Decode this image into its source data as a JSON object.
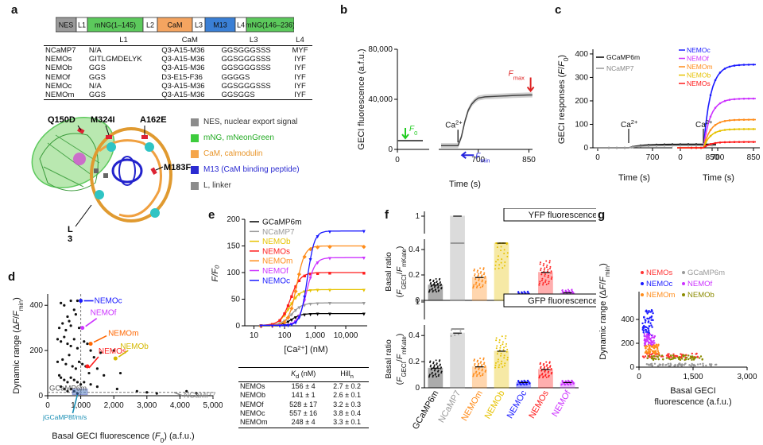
{
  "panel_labels": {
    "a": "a",
    "b": "b",
    "c": "c",
    "d": "d",
    "e": "e",
    "f": "f",
    "g": "g"
  },
  "construct": {
    "segments": [
      {
        "label": "NES",
        "color": "#9a9a9a",
        "text_color": "#111"
      },
      {
        "label": "L1",
        "color": "#ffffff",
        "text_color": "#111"
      },
      {
        "label": "mNG(1–145)",
        "color": "#5cc95c",
        "text_color": "#111"
      },
      {
        "label": "L2",
        "color": "#ffffff",
        "text_color": "#111"
      },
      {
        "label": "CaM",
        "color": "#f4a460",
        "text_color": "#111"
      },
      {
        "label": "L3",
        "color": "#ffffff",
        "text_color": "#111"
      },
      {
        "label": "M13",
        "color": "#3a7fd5",
        "text_color": "#111"
      },
      {
        "label": "L4",
        "color": "#ffffff",
        "text_color": "#111"
      },
      {
        "label": "mNG(146–236)",
        "color": "#5cc95c",
        "text_color": "#111"
      }
    ]
  },
  "table_a": {
    "headers": [
      "",
      "L1",
      "CaM",
      "L3",
      "L4"
    ],
    "rows": [
      [
        "NCaMP7",
        "N/A",
        "Q3-A15-M36",
        "GGSGGGSSS",
        "MYF"
      ],
      [
        "NEMOs",
        "GITLGMDELYK",
        "Q3-A15-M36",
        "GGSGGGSSS",
        "IYF"
      ],
      [
        "NEMOb",
        "GGS",
        "Q3-A15-M36",
        "GGSGGGSSS",
        "IYF"
      ],
      [
        "NEMOf",
        "GGS",
        "D3-E15-F36",
        "GGGGS",
        "IYF"
      ],
      [
        "NEMOc",
        "N/A",
        "Q3-A15-M36",
        "GGSGGGSSS",
        "IYF"
      ],
      [
        "NEMOm",
        "GGS",
        "Q3-A15-M36",
        "GGSGGS",
        "IYF"
      ]
    ]
  },
  "structure": {
    "mutations": [
      "Q150D",
      "M324I",
      "A162E",
      "M183F",
      "L\n3"
    ]
  },
  "legend_a": [
    {
      "color": "#8c8c8c",
      "text": "NES, nuclear export signal",
      "text_color": "#333"
    },
    {
      "color": "#3dcc3d",
      "text": "mNG, mNeonGreen",
      "text_color": "#22aa22"
    },
    {
      "color": "#f5a54a",
      "text": "CaM, calmodulin",
      "text_color": "#e8952a"
    },
    {
      "color": "#2b2bd1",
      "text": "M13 (CaM binding peptide)",
      "text_color": "#2b2bd1"
    },
    {
      "color": "#8c8c8c",
      "text": "L, linker",
      "text_color": "#333"
    }
  ],
  "chart_data": [
    {
      "panel": "b",
      "type": "line",
      "xlabel": "Time (s)",
      "ylabel": "GECI fluorescence (a.f.u.)",
      "xticks": [
        0,
        700,
        850
      ],
      "yticks": [
        "0",
        "40,000",
        "80,000"
      ],
      "ylim": [
        0,
        80000
      ],
      "segments": [
        {
          "x": [
            0,
            100
          ],
          "y": [
            7000,
            7000
          ]
        },
        {
          "x": [
            590,
            640,
            650,
            660,
            670,
            680,
            690,
            700,
            720,
            760,
            800,
            850,
            860
          ],
          "y": [
            3000,
            3000,
            10000,
            22000,
            31000,
            36000,
            39000,
            41000,
            42000,
            42500,
            43000,
            43500,
            43500
          ]
        }
      ],
      "annotations": {
        "f0": "F",
        "f0_sub": "0",
        "fmin": "F",
        "fmin_sub": "min",
        "fmax": "F",
        "fmax_sub": "max",
        "ca": "Ca",
        "ca_sup": "2+"
      }
    },
    {
      "panel": "c",
      "type": "line",
      "xlabel": "Time (s)",
      "ylabel": "GECI responses (F/F",
      "ylabel_sub": "0",
      "ylabel_end": ")",
      "yticks": [
        0,
        100,
        200,
        300,
        400
      ],
      "xticks": [
        0,
        700,
        850
      ],
      "left_series": [
        {
          "name": "GCaMP6m",
          "color": "#000000",
          "plateau": 15
        },
        {
          "name": "NCaMP7",
          "color": "#999999",
          "plateau": 10
        }
      ],
      "right_series": [
        {
          "name": "NEMOc",
          "color": "#1a1aff",
          "plateau": 355
        },
        {
          "name": "NEMOf",
          "color": "#cc33ff",
          "plateau": 210
        },
        {
          "name": "NEMOm",
          "color": "#ff8c1a",
          "plateau": 120
        },
        {
          "name": "NEMOb",
          "color": "#e6c200",
          "plateau": 80
        },
        {
          "name": "NEMOs",
          "color": "#ff1a1a",
          "plateau": 25
        }
      ],
      "annotation": {
        "ca": "Ca",
        "ca_sup": "2+"
      }
    },
    {
      "panel": "d",
      "type": "scatter",
      "xlabel": "Basal GECI fluorescence (F",
      "xlabel_sub": "0",
      "xlabel_end": ") (a.f.u.)",
      "ylabel": "Dynamic range (ΔF/F",
      "ylabel_sub": "min",
      "ylabel_end": ")",
      "xlim": [
        0,
        5000
      ],
      "ylim": [
        0,
        450
      ],
      "xticks": [
        0,
        1000,
        2000,
        3000,
        4000,
        5000
      ],
      "yticks": [
        0,
        200,
        400
      ],
      "points": [
        [
          700,
          420
        ],
        [
          900,
          420
        ],
        [
          1000,
          420
        ],
        [
          400,
          410
        ],
        [
          500,
          400
        ],
        [
          600,
          350
        ],
        [
          650,
          330
        ],
        [
          800,
          380
        ],
        [
          850,
          360
        ],
        [
          350,
          300
        ],
        [
          450,
          320
        ],
        [
          550,
          290
        ],
        [
          700,
          310
        ],
        [
          950,
          300
        ],
        [
          300,
          250
        ],
        [
          400,
          240
        ],
        [
          500,
          260
        ],
        [
          600,
          230
        ],
        [
          700,
          220
        ],
        [
          800,
          250
        ],
        [
          900,
          210
        ],
        [
          1100,
          240
        ],
        [
          1200,
          230
        ],
        [
          1300,
          200
        ],
        [
          1400,
          170
        ],
        [
          1600,
          190
        ],
        [
          2000,
          200
        ],
        [
          300,
          150
        ],
        [
          450,
          160
        ],
        [
          550,
          140
        ],
        [
          650,
          180
        ],
        [
          750,
          130
        ],
        [
          850,
          120
        ],
        [
          950,
          150
        ],
        [
          1050,
          140
        ],
        [
          1150,
          130
        ],
        [
          1250,
          100
        ],
        [
          1500,
          120
        ],
        [
          1700,
          90
        ],
        [
          2200,
          100
        ],
        [
          350,
          90
        ],
        [
          400,
          80
        ],
        [
          500,
          70
        ],
        [
          600,
          60
        ],
        [
          700,
          80
        ],
        [
          800,
          70
        ],
        [
          900,
          60
        ],
        [
          1000,
          50
        ],
        [
          1100,
          60
        ],
        [
          1300,
          50
        ],
        [
          1500,
          40
        ],
        [
          2100,
          30
        ],
        [
          2700,
          20
        ],
        [
          3000,
          15
        ],
        [
          3300,
          10
        ],
        [
          4200,
          20
        ],
        [
          4500,
          10
        ],
        [
          400,
          40
        ],
        [
          500,
          30
        ],
        [
          600,
          20
        ],
        [
          700,
          30
        ],
        [
          800,
          20
        ],
        [
          900,
          10
        ]
      ],
      "highlights": [
        {
          "label": "NEMOc",
          "color": "#1a1aff",
          "x": 1000,
          "y": 420
        },
        {
          "label": "NEMOf",
          "color": "#cc33ff",
          "x": 1050,
          "y": 300
        },
        {
          "label": "NEMOm",
          "color": "#ff6600",
          "x": 1300,
          "y": 230
        },
        {
          "label": "NEMOs",
          "color": "#ff1a1a",
          "x": 1200,
          "y": 130
        },
        {
          "label": "NEMOb",
          "color": "#d4b800",
          "x": 2050,
          "y": 165
        },
        {
          "label": "NCaMP7",
          "color": "#888888",
          "x": 3100,
          "y": 15
        },
        {
          "label": "GCaMP6m",
          "color": "#555555",
          "x": 900,
          "y": 20
        },
        {
          "label": "jGCaMP8f/m/s",
          "color": "#1a8fb5",
          "x": 900,
          "y": 15
        }
      ]
    },
    {
      "panel": "e",
      "type": "line",
      "xlabel": "[Ca²⁺] (nM)",
      "ylabel": "F/F₀",
      "xticks": [
        "10",
        "100",
        "1,000",
        "10,000"
      ],
      "yticks": [
        0,
        50,
        100,
        150,
        200
      ],
      "ylim": [
        0,
        200
      ],
      "series": [
        {
          "name": "GCaMP6m",
          "color": "#000000",
          "max": 23,
          "kd": 170,
          "n": 2.8,
          "marker": "▼"
        },
        {
          "name": "NCaMP7",
          "color": "#999999",
          "max": 43,
          "kd": 170,
          "n": 2.5,
          "marker": "▼"
        },
        {
          "name": "NEMOb",
          "color": "#e6c200",
          "max": 68,
          "kd": 141,
          "n": 2.6,
          "marker": "▼"
        },
        {
          "name": "NEMOs",
          "color": "#ff1a1a",
          "max": 100,
          "kd": 156,
          "n": 2.7,
          "marker": "■"
        },
        {
          "name": "NEMOm",
          "color": "#ff8c1a",
          "max": 150,
          "kd": 248,
          "n": 3.3,
          "marker": "◆"
        },
        {
          "name": "NEMOf",
          "color": "#cc33ff",
          "max": 128,
          "kd": 528,
          "n": 3.2,
          "marker": "▼"
        },
        {
          "name": "NEMOc",
          "color": "#1a1aff",
          "max": 178,
          "kd": 557,
          "n": 3.8,
          "marker": "▼"
        }
      ]
    },
    {
      "panel": "f",
      "type": "bar",
      "ylabel_top": "Basal ratio",
      "ylabel_bottom": "(F",
      "ylabel_sub": "GECI",
      "ylabel_mid": "/F",
      "ylabel_sub2": "mKate",
      "ylabel_end": ")",
      "categories": [
        "GCaMP6m",
        "NCaMP7",
        "NEMOm",
        "NEMOb",
        "NEMOc",
        "NEMOs",
        "NEMOf"
      ],
      "category_colors": [
        "#111111",
        "#999999",
        "#ff8c1a",
        "#e6c200",
        "#1a1aff",
        "#ff1a1a",
        "#cc33ff"
      ],
      "yfp": {
        "title": "YFP fluorescence",
        "values": [
          0.12,
          1.0,
          0.18,
          0.45,
          0.05,
          0.22,
          0.06
        ],
        "yticks": [
          "0",
          "0.2",
          "0.4",
          "1"
        ]
      },
      "gfp": {
        "title": "GFP fluorescence",
        "values": [
          0.15,
          0.72,
          0.16,
          0.28,
          0.04,
          0.14,
          0.04
        ],
        "yticks": [
          "0",
          "0.2",
          "0.4",
          "1"
        ]
      }
    },
    {
      "panel": "g",
      "type": "scatter",
      "xlabel": "Basal GECI",
      "xlabel2": "fluorescence (a.f.u.)",
      "ylabel": "Dynamic range (ΔF/F",
      "ylabel_sub": "min",
      "ylabel_end": ")",
      "xticks": [
        "0",
        "1,500",
        "3,000"
      ],
      "yticks": [
        0,
        200,
        400
      ],
      "xlim": [
        0,
        3000
      ],
      "ylim": [
        0,
        600
      ],
      "series": [
        {
          "name": "NEMOs",
          "color": "#ff3333",
          "center": [
            900,
            95
          ],
          "spread": [
            800,
            20
          ]
        },
        {
          "name": "GCaMP6m",
          "color": "#999999",
          "center": [
            1200,
            20
          ],
          "spread": [
            1000,
            10
          ]
        },
        {
          "name": "NEMOc",
          "color": "#1a1aff",
          "center": [
            250,
            370
          ],
          "spread": [
            150,
            110
          ]
        },
        {
          "name": "NEMOf",
          "color": "#cc33ff",
          "center": [
            300,
            230
          ],
          "spread": [
            150,
            50
          ]
        },
        {
          "name": "NEMOm",
          "color": "#ff8c1a",
          "center": [
            350,
            150
          ],
          "spread": [
            200,
            40
          ]
        },
        {
          "name": "NEMOb",
          "color": "#8b8b00",
          "center": [
            1000,
            80
          ],
          "spread": [
            800,
            20
          ]
        }
      ]
    }
  ],
  "table_e": {
    "headers": [
      "",
      "K",
      "d",
      " (nM)",
      "Hill",
      "n"
    ],
    "rows": [
      [
        "NEMOs",
        "156 ± 4",
        "2.7 ± 0.2"
      ],
      [
        "NEMOb",
        "141 ± 1",
        "2.6 ± 0.1"
      ],
      [
        "NEMOf",
        "528 ± 17",
        "3.2 ± 0.3"
      ],
      [
        "NEMOc",
        "557 ± 16",
        "3.8 ± 0.4"
      ],
      [
        "NEMOm",
        "248 ± 4",
        "3.3 ± 0.1"
      ]
    ]
  }
}
